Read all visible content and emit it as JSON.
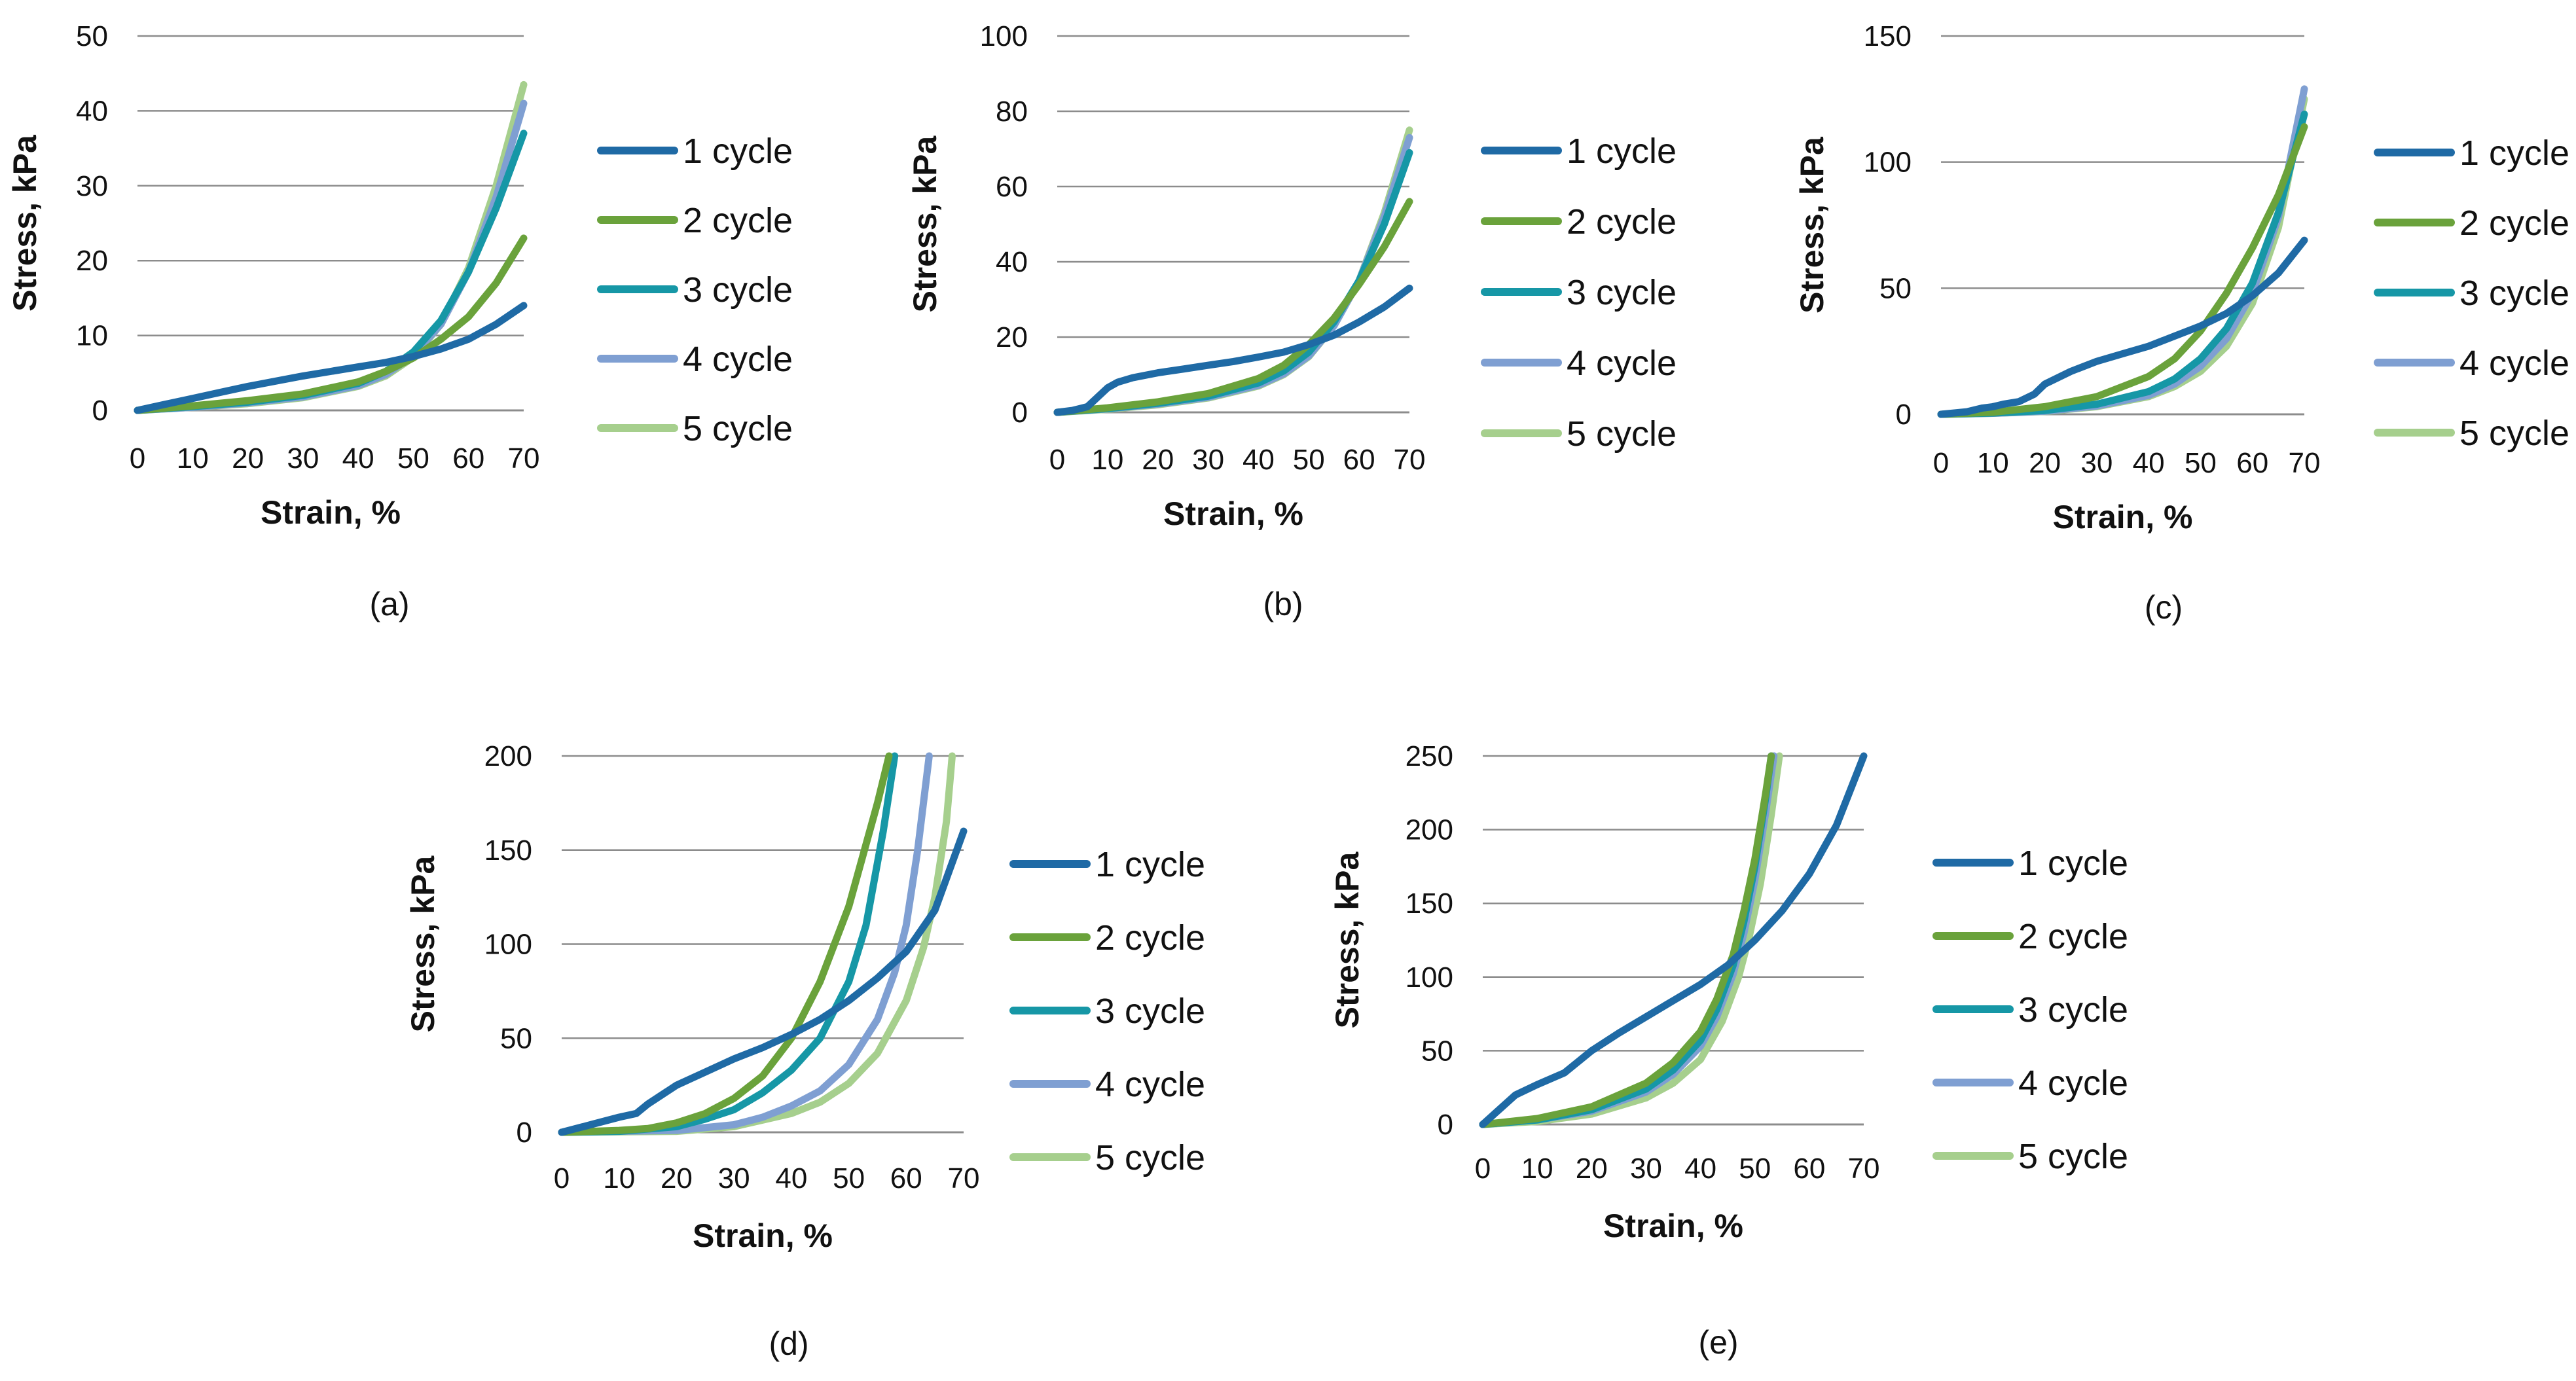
{
  "chart_data": [
    {
      "type": "line",
      "panel_label": "(a)",
      "xlabel": "Strain, %",
      "ylabel": "Stress, kPa",
      "xlim": [
        0,
        70
      ],
      "ylim": [
        0,
        50
      ],
      "xticks": [
        0,
        10,
        20,
        30,
        40,
        50,
        60,
        70
      ],
      "yticks": [
        0,
        10,
        20,
        30,
        40,
        50
      ],
      "grid": true,
      "legend_position": "right",
      "series": [
        {
          "name": "1 cycle",
          "color": "#1f6aa5",
          "x": [
            0,
            5,
            10,
            15,
            20,
            25,
            30,
            35,
            40,
            45,
            50,
            55,
            60,
            65,
            70
          ],
          "y": [
            0,
            0.8,
            1.6,
            2.4,
            3.2,
            3.9,
            4.6,
            5.2,
            5.8,
            6.4,
            7.2,
            8.2,
            9.5,
            11.5,
            14
          ]
        },
        {
          "name": "2 cycle",
          "color": "#6aa23b",
          "x": [
            0,
            10,
            20,
            30,
            40,
            45,
            50,
            55,
            60,
            65,
            70
          ],
          "y": [
            0,
            0.6,
            1.3,
            2.2,
            3.8,
            5.2,
            7,
            9.5,
            12.5,
            17,
            23
          ]
        },
        {
          "name": "3 cycle",
          "color": "#1697a6",
          "x": [
            0,
            10,
            20,
            30,
            40,
            45,
            50,
            55,
            60,
            65,
            70
          ],
          "y": [
            0,
            0.5,
            1.1,
            2,
            3.6,
            5.2,
            7.8,
            12,
            18.5,
            27,
            37
          ]
        },
        {
          "name": "4 cycle",
          "color": "#7f9fd2",
          "x": [
            0,
            10,
            20,
            30,
            40,
            45,
            50,
            55,
            60,
            65,
            70
          ],
          "y": [
            0,
            0.4,
            1,
            1.8,
            3.3,
            4.8,
            7.3,
            11.5,
            18.5,
            28.5,
            41
          ]
        },
        {
          "name": "5 cycle",
          "color": "#a6cf8d",
          "x": [
            0,
            10,
            20,
            30,
            40,
            45,
            50,
            55,
            60,
            65,
            70
          ],
          "y": [
            0,
            0.4,
            0.9,
            1.7,
            3.2,
            4.6,
            7.1,
            11.5,
            19,
            30,
            43.5
          ]
        }
      ]
    },
    {
      "type": "line",
      "panel_label": "(b)",
      "xlabel": "Strain, %",
      "ylabel": "Stress, kPa",
      "xlim": [
        0,
        70
      ],
      "ylim": [
        0,
        100
      ],
      "xticks": [
        0,
        10,
        20,
        30,
        40,
        50,
        60,
        70
      ],
      "yticks": [
        0,
        20,
        40,
        60,
        80,
        100
      ],
      "grid": true,
      "legend_position": "right",
      "series": [
        {
          "name": "1 cycle",
          "color": "#1f6aa5",
          "x": [
            0,
            3,
            6,
            8,
            10,
            12,
            15,
            20,
            25,
            30,
            35,
            40,
            45,
            50,
            55,
            60,
            65,
            70
          ],
          "y": [
            0,
            0.5,
            1.5,
            4,
            6.5,
            8,
            9.2,
            10.5,
            11.5,
            12.5,
            13.5,
            14.7,
            16,
            18,
            20.5,
            24,
            28,
            33
          ]
        },
        {
          "name": "2 cycle",
          "color": "#6aa23b",
          "x": [
            0,
            10,
            20,
            30,
            40,
            45,
            50,
            55,
            60,
            65,
            70
          ],
          "y": [
            0,
            1.2,
            2.8,
            5,
            9,
            12.5,
            18,
            25,
            34,
            44,
            56
          ]
        },
        {
          "name": "3 cycle",
          "color": "#1697a6",
          "x": [
            0,
            10,
            20,
            30,
            40,
            45,
            50,
            55,
            60,
            65,
            70
          ],
          "y": [
            0,
            1,
            2.4,
            4.3,
            7.8,
            11,
            16,
            24,
            35,
            50,
            69
          ]
        },
        {
          "name": "4 cycle",
          "color": "#7f9fd2",
          "x": [
            0,
            10,
            20,
            30,
            40,
            45,
            50,
            55,
            60,
            65,
            70
          ],
          "y": [
            0,
            0.9,
            2.2,
            4,
            7.2,
            10.2,
            15,
            23,
            35,
            52,
            73
          ]
        },
        {
          "name": "5 cycle",
          "color": "#a6cf8d",
          "x": [
            0,
            10,
            20,
            30,
            40,
            45,
            50,
            55,
            60,
            65,
            70
          ],
          "y": [
            0,
            0.8,
            2,
            3.8,
            7,
            10,
            14.8,
            23,
            35,
            53,
            75
          ]
        }
      ]
    },
    {
      "type": "line",
      "panel_label": "(c)",
      "xlabel": "Strain, %",
      "ylabel": "Stress, kPa",
      "xlim": [
        0,
        70
      ],
      "ylim": [
        0,
        150
      ],
      "xticks": [
        0,
        10,
        20,
        30,
        40,
        50,
        60,
        70
      ],
      "yticks": [
        0,
        50,
        100,
        150
      ],
      "grid": true,
      "legend_position": "right",
      "series": [
        {
          "name": "1 cycle",
          "color": "#1f6aa5",
          "x": [
            0,
            5,
            8,
            10,
            12,
            15,
            18,
            20,
            25,
            30,
            35,
            40,
            45,
            50,
            55,
            60,
            65,
            70
          ],
          "y": [
            0,
            1,
            2.5,
            3,
            4,
            5,
            8,
            12,
            17,
            21,
            24,
            27,
            31,
            35,
            40,
            47,
            56,
            69
          ]
        },
        {
          "name": "2 cycle",
          "color": "#6aa23b",
          "x": [
            0,
            10,
            20,
            30,
            40,
            45,
            50,
            55,
            60,
            65,
            70
          ],
          "y": [
            0,
            0.8,
            3,
            7,
            15,
            22,
            33,
            48,
            66,
            87,
            114
          ]
        },
        {
          "name": "3 cycle",
          "color": "#1697a6",
          "x": [
            0,
            10,
            20,
            30,
            40,
            45,
            50,
            55,
            60,
            65,
            70
          ],
          "y": [
            0,
            0.5,
            1.5,
            4,
            9,
            14,
            22,
            34,
            52,
            80,
            119
          ]
        },
        {
          "name": "4 cycle",
          "color": "#7f9fd2",
          "x": [
            0,
            10,
            20,
            30,
            40,
            45,
            50,
            55,
            60,
            65,
            70
          ],
          "y": [
            0,
            0.4,
            1.2,
            3.3,
            7.5,
            12,
            19,
            30,
            48,
            78,
            129
          ]
        },
        {
          "name": "5 cycle",
          "color": "#a6cf8d",
          "x": [
            0,
            10,
            20,
            30,
            40,
            45,
            50,
            55,
            60,
            65,
            70
          ],
          "y": [
            0,
            0.4,
            1.1,
            3,
            7,
            11,
            17,
            27,
            44,
            74,
            125
          ]
        }
      ]
    },
    {
      "type": "line",
      "panel_label": "(d)",
      "xlabel": "Strain, %",
      "ylabel": "Stress, kPa",
      "xlim": [
        0,
        70
      ],
      "ylim": [
        0,
        200
      ],
      "xticks": [
        0,
        10,
        20,
        30,
        40,
        50,
        60,
        70
      ],
      "yticks": [
        0,
        50,
        100,
        150,
        200
      ],
      "grid": true,
      "legend_position": "right",
      "series": [
        {
          "name": "1 cycle",
          "color": "#1f6aa5",
          "x": [
            0,
            5,
            10,
            13,
            15,
            20,
            25,
            30,
            35,
            40,
            45,
            50,
            55,
            60,
            65,
            70
          ],
          "y": [
            0,
            4,
            8,
            10,
            15,
            25,
            32,
            39,
            45,
            52,
            60,
            70,
            82,
            96,
            118,
            160
          ]
        },
        {
          "name": "2 cycle",
          "color": "#6aa23b",
          "x": [
            0,
            10,
            15,
            20,
            25,
            30,
            35,
            40,
            45,
            50,
            55,
            57
          ],
          "y": [
            0,
            1,
            2,
            5,
            10,
            18,
            30,
            50,
            80,
            120,
            175,
            200
          ]
        },
        {
          "name": "3 cycle",
          "color": "#1697a6",
          "x": [
            0,
            10,
            20,
            25,
            30,
            35,
            40,
            45,
            50,
            53,
            56,
            58
          ],
          "y": [
            0,
            0.5,
            3,
            7,
            12,
            21,
            33,
            50,
            80,
            110,
            160,
            200
          ]
        },
        {
          "name": "4 cycle",
          "color": "#7f9fd2",
          "x": [
            0,
            20,
            30,
            35,
            40,
            45,
            50,
            55,
            58,
            60,
            62,
            64
          ],
          "y": [
            0,
            1,
            4,
            8,
            14,
            22,
            36,
            60,
            85,
            110,
            150,
            200
          ]
        },
        {
          "name": "5 cycle",
          "color": "#a6cf8d",
          "x": [
            0,
            20,
            30,
            40,
            45,
            50,
            55,
            60,
            63,
            65,
            67,
            68
          ],
          "y": [
            0,
            0.5,
            3,
            10,
            16,
            26,
            42,
            70,
            98,
            125,
            165,
            200
          ]
        }
      ]
    },
    {
      "type": "line",
      "panel_label": "(e)",
      "xlabel": "Strain, %",
      "ylabel": "Stress, kPa",
      "xlim": [
        0,
        70
      ],
      "ylim": [
        0,
        250
      ],
      "xticks": [
        0,
        10,
        20,
        30,
        40,
        50,
        60,
        70
      ],
      "yticks": [
        0,
        50,
        100,
        150,
        200,
        250
      ],
      "grid": true,
      "legend_position": "right",
      "series": [
        {
          "name": "1 cycle",
          "color": "#1f6aa5",
          "x": [
            0,
            3,
            6,
            10,
            15,
            20,
            25,
            30,
            35,
            40,
            45,
            50,
            55,
            60,
            65,
            70
          ],
          "y": [
            0,
            10,
            20,
            27,
            35,
            50,
            62,
            73,
            84,
            95,
            108,
            125,
            145,
            170,
            203,
            250
          ]
        },
        {
          "name": "2 cycle",
          "color": "#6aa23b",
          "x": [
            0,
            10,
            20,
            30,
            35,
            40,
            43,
            46,
            48,
            50,
            52,
            53
          ],
          "y": [
            0,
            4,
            12,
            28,
            42,
            63,
            85,
            115,
            145,
            180,
            225,
            250
          ]
        },
        {
          "name": "3 cycle",
          "color": "#1697a6",
          "x": [
            0,
            10,
            20,
            30,
            35,
            40,
            43,
            46,
            48,
            50,
            52,
            53
          ],
          "y": [
            0,
            3,
            10,
            24,
            37,
            57,
            78,
            108,
            138,
            175,
            222,
            250
          ]
        },
        {
          "name": "4 cycle",
          "color": "#7f9fd2",
          "x": [
            0,
            10,
            20,
            30,
            35,
            40,
            43,
            46,
            48,
            50,
            52,
            53.5
          ],
          "y": [
            0,
            3,
            9,
            22,
            34,
            53,
            73,
            102,
            130,
            166,
            212,
            250
          ]
        },
        {
          "name": "5 cycle",
          "color": "#a6cf8d",
          "x": [
            0,
            10,
            20,
            30,
            35,
            40,
            44,
            47,
            49,
            51,
            53,
            54.5
          ],
          "y": [
            0,
            2,
            7,
            18,
            28,
            44,
            70,
            100,
            128,
            163,
            210,
            250
          ]
        }
      ]
    }
  ]
}
